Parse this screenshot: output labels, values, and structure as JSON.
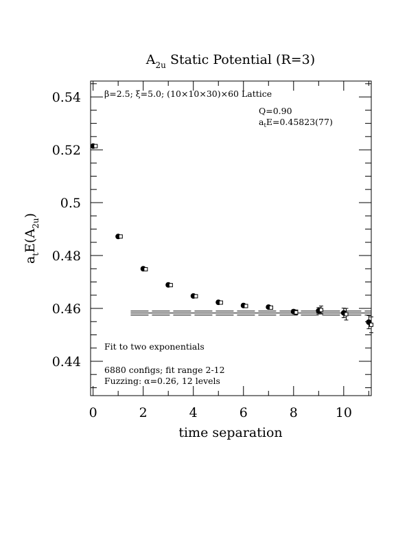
{
  "chart_data": {
    "type": "scatter",
    "title_main": "A",
    "title_sub": "2u",
    "title_rest": " Static Potential (R=3)",
    "xlabel": "time separation",
    "ylabel_main": "a",
    "ylabel_sub1": "t",
    "ylabel_mid": "E(A",
    "ylabel_sub2": "2u",
    "ylabel_end": ")",
    "xlim": [
      -0.1,
      11.1
    ],
    "ylim": [
      0.427,
      0.546
    ],
    "xticks": [
      0,
      2,
      4,
      6,
      8,
      10
    ],
    "xtick_labels": [
      "0",
      "2",
      "4",
      "6",
      "8",
      "10"
    ],
    "yticks": [
      0.44,
      0.46,
      0.48,
      0.5,
      0.52,
      0.54
    ],
    "ytick_labels": [
      "0.44",
      "0.46",
      "0.48",
      "0.5",
      "0.52",
      "0.54"
    ],
    "annotations": {
      "lattice": "β=2.5; ξ=5.0; (10×10×30)×60 Lattice",
      "q": "Q=0.90",
      "energy_a": "a",
      "energy_sub": "t",
      "energy_rest": "E=0.45823(77)",
      "fit": "Fit to two exponentials",
      "configs": "6880 configs; fit range 2-12",
      "fuzzing": "Fuzzing: α=0.26, 12 levels"
    },
    "series": [
      {
        "marker": "filled-circle",
        "x": [
          0,
          1,
          2,
          3,
          4,
          5,
          6,
          7,
          8,
          9,
          10,
          11
        ],
        "y": [
          0.5214,
          0.4872,
          0.475,
          0.4689,
          0.4647,
          0.4623,
          0.4611,
          0.4605,
          0.4588,
          0.4591,
          0.4583,
          0.4548
        ],
        "err": [
          0.0002,
          0.0002,
          0.0002,
          0.0002,
          0.0002,
          0.0002,
          0.0003,
          0.0004,
          0.0007,
          0.0012,
          0.0018,
          0.0025
        ]
      },
      {
        "marker": "open-square",
        "x": [
          0.1,
          1.1,
          2.1,
          3.1,
          4.1,
          5.1,
          6.1,
          7.1,
          8.1,
          9.1,
          10.1,
          11.1
        ],
        "y": [
          0.5214,
          0.4872,
          0.4748,
          0.4688,
          0.4646,
          0.4622,
          0.4609,
          0.4603,
          0.4585,
          0.4594,
          0.4578,
          0.4538
        ],
        "err": [
          0.0003,
          0.0003,
          0.0003,
          0.0003,
          0.0003,
          0.0003,
          0.0004,
          0.0006,
          0.0009,
          0.0015,
          0.0022,
          0.003
        ]
      }
    ],
    "fit": {
      "x": [
        1.5,
        11.1
      ],
      "center": 0.45823,
      "err": 0.00077
    }
  }
}
